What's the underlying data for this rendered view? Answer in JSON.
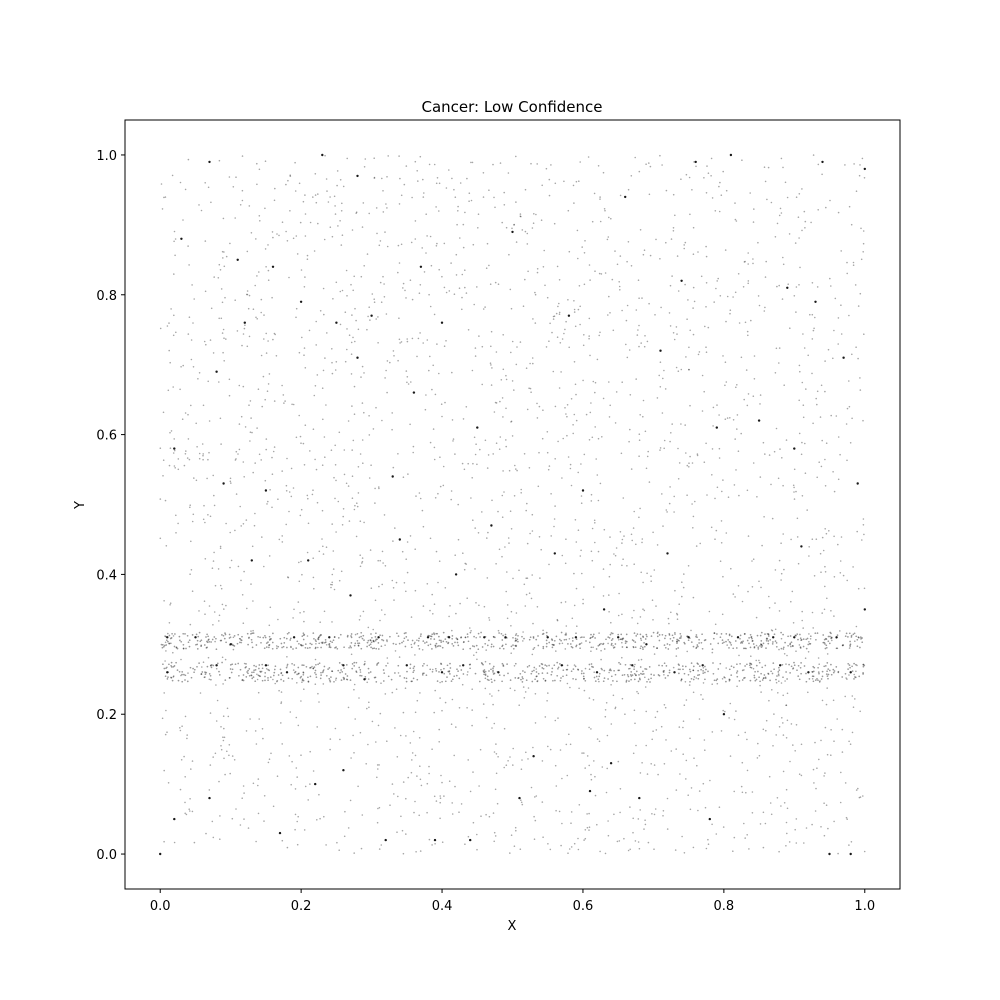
{
  "chart_data": {
    "type": "scatter",
    "title": "Cancer: Low Confidence",
    "xlabel": "X",
    "ylabel": "Y",
    "xlim": [
      -0.05,
      1.05
    ],
    "ylim": [
      -0.05,
      1.05
    ],
    "xticks": [
      0.0,
      0.2,
      0.4,
      0.6,
      0.8,
      1.0
    ],
    "xtick_labels": [
      "0.0",
      "0.2",
      "0.4",
      "0.6",
      "0.8",
      "1.0"
    ],
    "yticks": [
      0.0,
      0.2,
      0.4,
      0.6,
      0.8,
      1.0
    ],
    "ytick_labels": [
      "0.0",
      "0.2",
      "0.4",
      "0.6",
      "0.8",
      "1.0"
    ],
    "grid": false,
    "marker_color": "#000000",
    "series": [
      {
        "name": "low-confidence",
        "points": [
          [
            0.0,
            0.0
          ],
          [
            0.01,
            0.26
          ],
          [
            0.01,
            0.31
          ],
          [
            0.02,
            0.05
          ],
          [
            0.02,
            0.58
          ],
          [
            0.03,
            0.88
          ],
          [
            0.05,
            0.31
          ],
          [
            0.07,
            0.99
          ],
          [
            0.07,
            0.08
          ],
          [
            0.08,
            0.27
          ],
          [
            0.08,
            0.69
          ],
          [
            0.09,
            0.53
          ],
          [
            0.1,
            0.3
          ],
          [
            0.11,
            0.85
          ],
          [
            0.12,
            0.76
          ],
          [
            0.13,
            0.42
          ],
          [
            0.15,
            0.52
          ],
          [
            0.15,
            0.27
          ],
          [
            0.16,
            0.84
          ],
          [
            0.17,
            0.03
          ],
          [
            0.18,
            0.26
          ],
          [
            0.19,
            0.31
          ],
          [
            0.2,
            0.79
          ],
          [
            0.21,
            0.42
          ],
          [
            0.22,
            0.1
          ],
          [
            0.23,
            1.0
          ],
          [
            0.24,
            0.31
          ],
          [
            0.25,
            0.76
          ],
          [
            0.26,
            0.27
          ],
          [
            0.26,
            0.12
          ],
          [
            0.27,
            0.37
          ],
          [
            0.28,
            0.71
          ],
          [
            0.28,
            0.97
          ],
          [
            0.29,
            0.25
          ],
          [
            0.3,
            0.77
          ],
          [
            0.31,
            0.31
          ],
          [
            0.32,
            0.02
          ],
          [
            0.33,
            0.54
          ],
          [
            0.34,
            0.45
          ],
          [
            0.35,
            0.27
          ],
          [
            0.36,
            0.66
          ],
          [
            0.37,
            0.84
          ],
          [
            0.38,
            0.31
          ],
          [
            0.39,
            0.02
          ],
          [
            0.4,
            0.26
          ],
          [
            0.4,
            0.76
          ],
          [
            0.41,
            0.31
          ],
          [
            0.42,
            0.4
          ],
          [
            0.43,
            0.27
          ],
          [
            0.44,
            0.02
          ],
          [
            0.45,
            0.61
          ],
          [
            0.46,
            0.31
          ],
          [
            0.47,
            0.47
          ],
          [
            0.48,
            0.26
          ],
          [
            0.49,
            0.31
          ],
          [
            0.5,
            0.89
          ],
          [
            0.51,
            0.08
          ],
          [
            0.53,
            0.14
          ],
          [
            0.55,
            0.31
          ],
          [
            0.56,
            0.43
          ],
          [
            0.57,
            0.27
          ],
          [
            0.58,
            0.77
          ],
          [
            0.59,
            0.31
          ],
          [
            0.6,
            0.52
          ],
          [
            0.61,
            0.09
          ],
          [
            0.62,
            0.26
          ],
          [
            0.63,
            0.35
          ],
          [
            0.64,
            0.13
          ],
          [
            0.65,
            0.31
          ],
          [
            0.66,
            0.94
          ],
          [
            0.67,
            0.27
          ],
          [
            0.68,
            0.08
          ],
          [
            0.69,
            0.3
          ],
          [
            0.71,
            0.72
          ],
          [
            0.72,
            0.43
          ],
          [
            0.73,
            0.26
          ],
          [
            0.74,
            0.82
          ],
          [
            0.75,
            0.31
          ],
          [
            0.76,
            0.99
          ],
          [
            0.77,
            0.27
          ],
          [
            0.78,
            0.05
          ],
          [
            0.79,
            0.61
          ],
          [
            0.8,
            0.2
          ],
          [
            0.81,
            1.0
          ],
          [
            0.82,
            0.31
          ],
          [
            0.85,
            0.62
          ],
          [
            0.87,
            0.31
          ],
          [
            0.88,
            0.27
          ],
          [
            0.89,
            0.81
          ],
          [
            0.9,
            0.58
          ],
          [
            0.9,
            0.31
          ],
          [
            0.91,
            0.44
          ],
          [
            0.92,
            0.26
          ],
          [
            0.93,
            0.79
          ],
          [
            0.94,
            0.99
          ],
          [
            0.95,
            0.0
          ],
          [
            0.96,
            0.31
          ],
          [
            0.97,
            0.71
          ],
          [
            0.98,
            0.26
          ],
          [
            0.98,
            0.0
          ],
          [
            0.99,
            0.53
          ],
          [
            1.0,
            0.98
          ],
          [
            1.0,
            0.35
          ]
        ]
      }
    ],
    "background_density": {
      "description": "dense low-confidence points forming horizontal bands",
      "bands": [
        {
          "y_center": 0.305,
          "y_spread": 0.012,
          "count": 700
        },
        {
          "y_center": 0.26,
          "y_spread": 0.014,
          "count": 650
        }
      ],
      "uniform_count": 2600
    }
  }
}
